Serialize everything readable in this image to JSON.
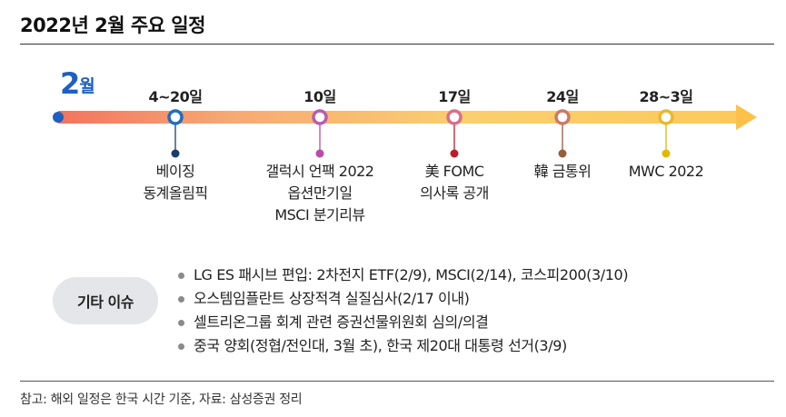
{
  "title": "2022년 2월 주요 일정",
  "month": {
    "number": "2",
    "suffix": "월"
  },
  "events": [
    {
      "date": "4~20일",
      "lines": [
        "베이징",
        "동계올림픽"
      ],
      "marker_color": "#1f6fbf",
      "stem_color": "#1b3d66"
    },
    {
      "date": "10일",
      "lines": [
        "갤럭시 언팩 2022",
        "옵션만기일",
        "MSCI 분기리뷰"
      ],
      "marker_color": "#b85cb0",
      "stem_color": "#b84ca8"
    },
    {
      "date": "17일",
      "lines": [
        "美 FOMC",
        "의사록 공개"
      ],
      "marker_color": "#d96f8a",
      "stem_color": "#b81e2a"
    },
    {
      "date": "24일",
      "lines": [
        "韓 금통위"
      ],
      "marker_color": "#c97a68",
      "stem_color": "#9a5a3c"
    },
    {
      "date": "28~3일",
      "lines": [
        "MWC 2022"
      ],
      "marker_color": "#e8b830",
      "stem_color": "#e0b800"
    }
  ],
  "other_issues": {
    "label": "기타 이슈",
    "items": [
      "LG ES 패시브 편입: 2차전지 ETF(2/9), MSCI(2/14), 코스피200(3/10)",
      "오스템임플란트 상장적격 실질심사(2/17 이내)",
      "셀트리온그룹 회계 관련 증권선물위원회 심의/의결",
      "중국 양회(정협/전인대, 3월 초), 한국 제20대 대통령 선거(3/9)"
    ]
  },
  "note": "참고: 해외 일정은 한국 시간 기준, 자료: 삼성증권 정리"
}
